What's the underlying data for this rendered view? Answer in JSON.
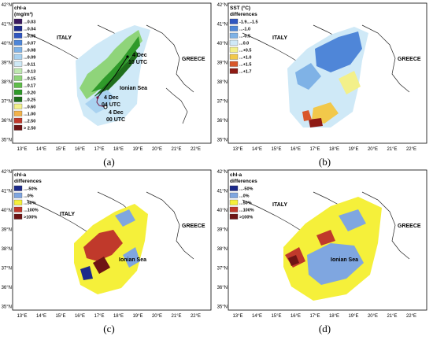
{
  "panels": [
    {
      "id": "a",
      "caption": "(a)",
      "legend_title": [
        "chl-a",
        "(mg/m³)"
      ],
      "legend": [
        {
          "label": "...0.03",
          "color": "#3b1a5e"
        },
        {
          "label": "...0.04",
          "color": "#1c2a8a"
        },
        {
          "label": "...0.05",
          "color": "#2f56c0"
        },
        {
          "label": "...0.07",
          "color": "#4f86d8"
        },
        {
          "label": "...0.08",
          "color": "#7fb2e6"
        },
        {
          "label": "...0.09",
          "color": "#a9d2f0"
        },
        {
          "label": "...0.11",
          "color": "#cfe9f7"
        },
        {
          "label": "...0.13",
          "color": "#bfe8b0"
        },
        {
          "label": "...0.15",
          "color": "#8fd47a"
        },
        {
          "label": "...0.17",
          "color": "#5fbd4a"
        },
        {
          "label": "...0.20",
          "color": "#2f9a2a"
        },
        {
          "label": "...0.25",
          "color": "#1f6e1c"
        },
        {
          "label": "...0.60",
          "color": "#f3f08a"
        },
        {
          "label": "...1.00",
          "color": "#f2b24a"
        },
        {
          "label": "...2.50",
          "color": "#c0392b"
        },
        {
          "label": "> 2.50",
          "color": "#6e1414"
        }
      ],
      "labels": {
        "country1": "ITALY",
        "country2": "GREECE",
        "sea": "Ionian Sea"
      },
      "track_annotations": [
        {
          "text": "4 Dec",
          "color": "#000000"
        },
        {
          "text": "10 UTC",
          "color": "#000000"
        },
        {
          "text": "4 Dec",
          "color": "#c0392b"
        },
        {
          "text": "04 UTC",
          "color": "#c0392b"
        },
        {
          "text": "4 Dec",
          "color": "#000000"
        },
        {
          "text": "00 UTC",
          "color": "#000000"
        }
      ]
    },
    {
      "id": "b",
      "caption": "(b)",
      "legend_title": [
        "SST (°C)",
        "differences"
      ],
      "legend": [
        {
          "label": "-1.9...-1.5",
          "color": "#2f56c0"
        },
        {
          "label": "...-1.0",
          "color": "#4f86d8"
        },
        {
          "label": "...-0.5",
          "color": "#7fb2e6"
        },
        {
          "label": "...0.0",
          "color": "#cfe9f7"
        },
        {
          "label": "...+0.5",
          "color": "#f3f08a"
        },
        {
          "label": "...+1.0",
          "color": "#f2c84a"
        },
        {
          "label": "...+1.5",
          "color": "#d9572b"
        },
        {
          "label": "...+1.7",
          "color": "#8e1a14"
        }
      ],
      "labels": {
        "country1": "ITALY",
        "country2": "GREECE",
        "sea": ""
      }
    },
    {
      "id": "c",
      "caption": "(c)",
      "legend_title": [
        "chl-a",
        "differences"
      ],
      "legend": [
        {
          "label": "...-50%",
          "color": "#1c2a8a"
        },
        {
          "label": "...0%",
          "color": "#7fa6e0"
        },
        {
          "label": "...50%",
          "color": "#f5f03a"
        },
        {
          "label": "...100%",
          "color": "#c0392b"
        },
        {
          "label": ">100%",
          "color": "#6e1414"
        }
      ],
      "labels": {
        "country1": "ITALY",
        "country2": "GREECE",
        "sea": "Ionian Sea"
      }
    },
    {
      "id": "d",
      "caption": "(d)",
      "legend_title": [
        "chl-a",
        "differences"
      ],
      "legend": [
        {
          "label": "...-50%",
          "color": "#1c2a8a"
        },
        {
          "label": "...0%",
          "color": "#7fa6e0"
        },
        {
          "label": "...50%",
          "color": "#f5f03a"
        },
        {
          "label": "...100%",
          "color": "#c0392b"
        },
        {
          "label": ">100%",
          "color": "#6e1414"
        }
      ],
      "labels": {
        "country1": "ITALY",
        "country2": "GREECE",
        "sea": "Ionian Sea"
      }
    }
  ],
  "lat_ticks": [
    "42°N",
    "41°N",
    "40°N",
    "39°N",
    "38°N",
    "37°N",
    "36°N",
    "35°N"
  ],
  "lon_ticks": [
    "13°E",
    "14°E",
    "15°E",
    "16°E",
    "17°E",
    "18°E",
    "19°E",
    "20°E",
    "21°E",
    "22°E"
  ]
}
